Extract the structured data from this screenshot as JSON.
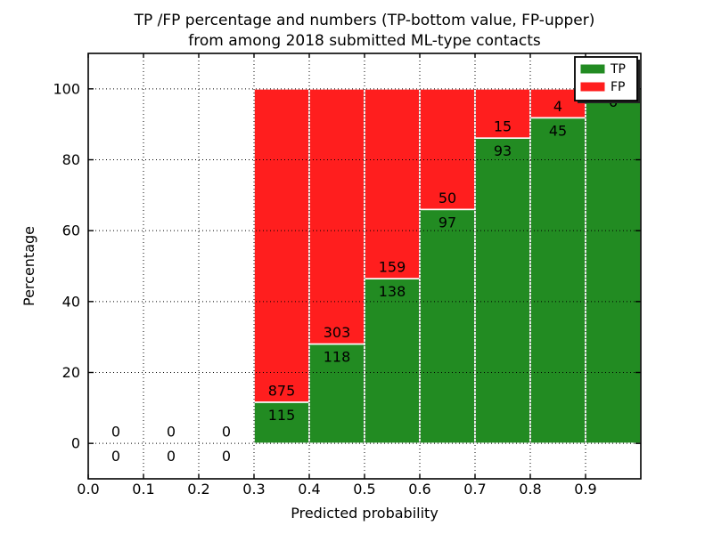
{
  "figure": {
    "background": "#ffffff"
  },
  "chart_data": {
    "type": "bar",
    "stacked": true,
    "normalized_to": 100,
    "title_lines": [
      "TP /FP percentage and numbers (TP-bottom value, FP-upper)",
      "from among 2018 submitted ML-type contacts"
    ],
    "xlabel": "Predicted probability",
    "ylabel": "Percentage",
    "xlim": [
      0.0,
      1.0
    ],
    "ylim": [
      -10,
      110
    ],
    "x_ticks": [
      "0.0",
      "0.1",
      "0.2",
      "0.3",
      "0.4",
      "0.5",
      "0.6",
      "0.7",
      "0.8",
      "0.9"
    ],
    "x_tick_values": [
      0.0,
      0.1,
      0.2,
      0.3,
      0.4,
      0.5,
      0.6,
      0.7,
      0.8,
      0.9
    ],
    "y_ticks": [
      "0",
      "20",
      "40",
      "60",
      "80",
      "100"
    ],
    "y_tick_values": [
      0,
      20,
      40,
      60,
      80,
      100
    ],
    "grid": "dotted",
    "bin_width": 0.1,
    "bins": [
      {
        "x_start": 0.0,
        "tp": 0,
        "fp": 0,
        "tp_pct": 0
      },
      {
        "x_start": 0.1,
        "tp": 0,
        "fp": 0,
        "tp_pct": 0
      },
      {
        "x_start": 0.2,
        "tp": 0,
        "fp": 0,
        "tp_pct": 0
      },
      {
        "x_start": 0.3,
        "tp": 115,
        "fp": 875,
        "tp_pct": 11.62
      },
      {
        "x_start": 0.4,
        "tp": 118,
        "fp": 303,
        "tp_pct": 28.03
      },
      {
        "x_start": 0.5,
        "tp": 138,
        "fp": 159,
        "tp_pct": 46.46
      },
      {
        "x_start": 0.6,
        "tp": 97,
        "fp": 50,
        "tp_pct": 65.99
      },
      {
        "x_start": 0.7,
        "tp": 93,
        "fp": 15,
        "tp_pct": 86.11
      },
      {
        "x_start": 0.8,
        "tp": 45,
        "fp": 4,
        "tp_pct": 91.84
      },
      {
        "x_start": 0.9,
        "tp": 6,
        "fp": 0,
        "tp_pct": 100
      }
    ],
    "series": [
      {
        "name": "TP",
        "color": "#228B22"
      },
      {
        "name": "FP",
        "color": "#FF1E1E"
      }
    ],
    "legend": {
      "position": "upper right",
      "entries": [
        "TP",
        "FP"
      ]
    },
    "colors": {
      "tp": "#228B22",
      "fp": "#FF1E1E",
      "grid": "#000000",
      "spine": "#000000",
      "bar_edge": "#ffffff",
      "legend_shadow": "#222222"
    }
  }
}
